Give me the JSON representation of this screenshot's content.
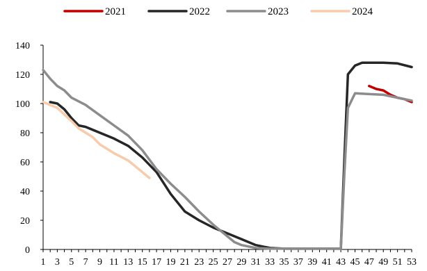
{
  "chart_data": {
    "type": "line",
    "title": "",
    "xlabel": "",
    "ylabel": "",
    "xlim": [
      1,
      53
    ],
    "ylim": [
      0,
      140
    ],
    "yticks": [
      0,
      20,
      40,
      60,
      80,
      100,
      120,
      140
    ],
    "xticks": [
      1,
      3,
      5,
      7,
      9,
      11,
      13,
      15,
      17,
      19,
      21,
      23,
      25,
      27,
      29,
      31,
      33,
      35,
      37,
      39,
      41,
      43,
      45,
      47,
      49,
      51,
      53
    ],
    "xtick_labels": [
      "1",
      "3",
      "5",
      "7",
      "9",
      "11",
      "13",
      "15",
      "17",
      "19",
      "21",
      "23",
      "25",
      "27",
      "29",
      "31",
      "33",
      "35",
      "37",
      "39",
      "41",
      "43",
      "45",
      "47",
      "49",
      "51",
      "53"
    ],
    "grid": false,
    "legend_position": "top",
    "series": [
      {
        "name": "2021",
        "color": "#c00000",
        "points": [
          [
            47,
            112
          ],
          [
            48,
            110
          ],
          [
            49,
            109
          ],
          [
            50,
            106
          ],
          [
            51,
            104
          ],
          [
            52,
            103
          ],
          [
            53,
            101
          ]
        ]
      },
      {
        "name": "2022",
        "color": "#262626",
        "points": [
          [
            2,
            101
          ],
          [
            3,
            100
          ],
          [
            4,
            96
          ],
          [
            5,
            90
          ],
          [
            6,
            85
          ],
          [
            7,
            84
          ],
          [
            9,
            80
          ],
          [
            11,
            76
          ],
          [
            13,
            71
          ],
          [
            15,
            63
          ],
          [
            17,
            53
          ],
          [
            19,
            38
          ],
          [
            21,
            26
          ],
          [
            23,
            20
          ],
          [
            25,
            15
          ],
          [
            27,
            11
          ],
          [
            29,
            7
          ],
          [
            31,
            3
          ],
          [
            33,
            1
          ],
          [
            35,
            0.5
          ],
          [
            37,
            0.5
          ],
          [
            39,
            0.5
          ],
          [
            41,
            0.5
          ],
          [
            43,
            0.5
          ],
          [
            43.5,
            62
          ],
          [
            44,
            120
          ],
          [
            45,
            126
          ],
          [
            46,
            128
          ],
          [
            47,
            128
          ],
          [
            49,
            128
          ],
          [
            51,
            127.5
          ],
          [
            53,
            125
          ]
        ]
      },
      {
        "name": "2023",
        "color": "#8c8c8c",
        "points": [
          [
            1,
            123
          ],
          [
            2,
            117
          ],
          [
            3,
            112
          ],
          [
            4,
            109
          ],
          [
            5,
            104
          ],
          [
            7,
            99
          ],
          [
            9,
            92
          ],
          [
            11,
            85
          ],
          [
            13,
            78
          ],
          [
            15,
            68
          ],
          [
            17,
            55
          ],
          [
            19,
            45
          ],
          [
            21,
            36
          ],
          [
            23,
            26
          ],
          [
            25,
            17
          ],
          [
            27,
            9
          ],
          [
            28,
            5
          ],
          [
            29,
            3
          ],
          [
            31,
            1
          ],
          [
            33,
            0.5
          ],
          [
            35,
            0.5
          ],
          [
            37,
            0.5
          ],
          [
            39,
            0.5
          ],
          [
            41,
            0.5
          ],
          [
            43,
            0.5
          ],
          [
            43.5,
            52
          ],
          [
            44,
            97
          ],
          [
            45,
            107
          ],
          [
            47,
            106.5
          ],
          [
            49,
            106
          ],
          [
            51,
            104
          ],
          [
            53,
            102
          ]
        ]
      },
      {
        "name": "2024",
        "color": "#f8cbad",
        "points": [
          [
            1,
            101
          ],
          [
            3,
            97
          ],
          [
            5,
            88
          ],
          [
            6,
            83
          ],
          [
            7,
            80
          ],
          [
            8,
            77
          ],
          [
            9,
            72
          ],
          [
            11,
            66
          ],
          [
            13,
            61
          ],
          [
            15,
            53
          ],
          [
            16,
            49
          ]
        ]
      }
    ]
  }
}
